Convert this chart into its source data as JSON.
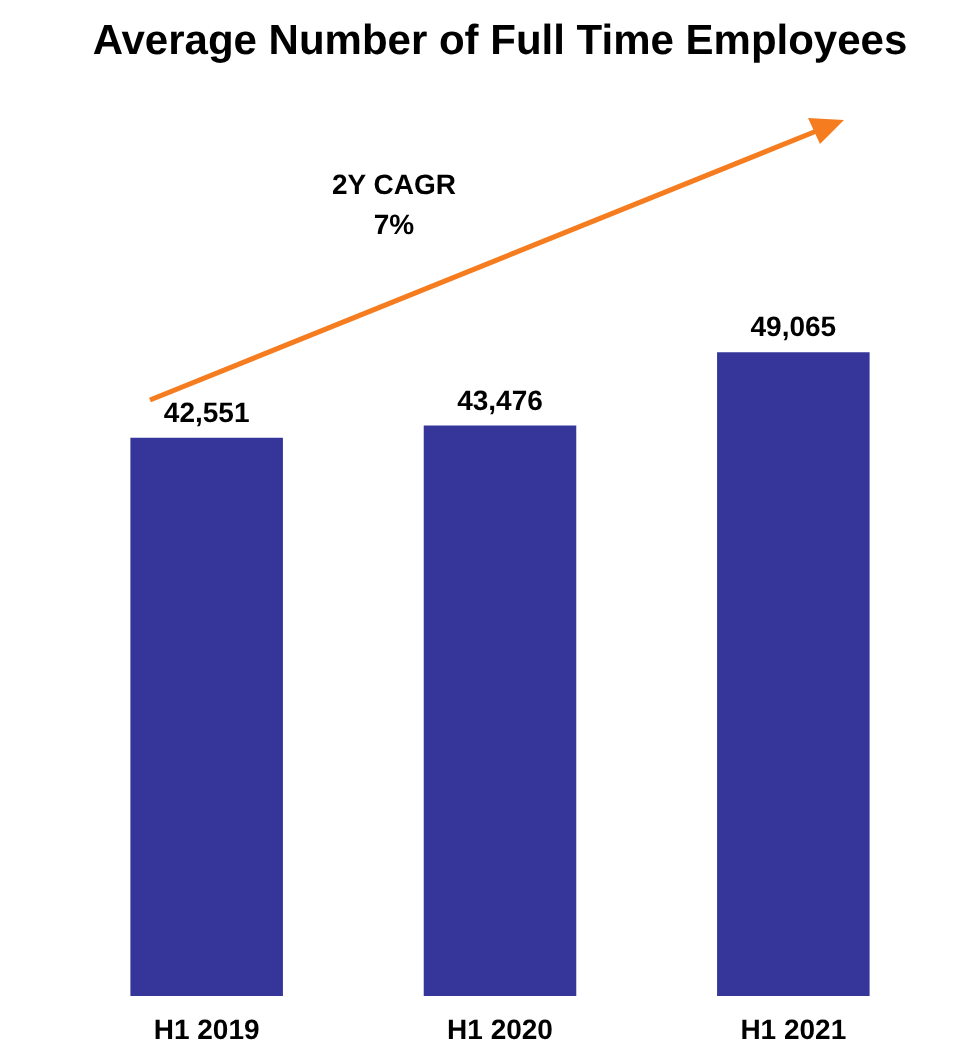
{
  "chart_data": {
    "type": "bar",
    "title": "Average Number of Full Time Employees",
    "categories": [
      "H1 2019",
      "H1 2020",
      "H1 2021"
    ],
    "values": [
      42551,
      43476,
      49065
    ],
    "value_labels": [
      "42,551",
      "43,476",
      "49,065"
    ],
    "color": "#35359a",
    "tick_labels": "x",
    "annotations": [
      "2Y CAGR",
      "7%"
    ]
  }
}
